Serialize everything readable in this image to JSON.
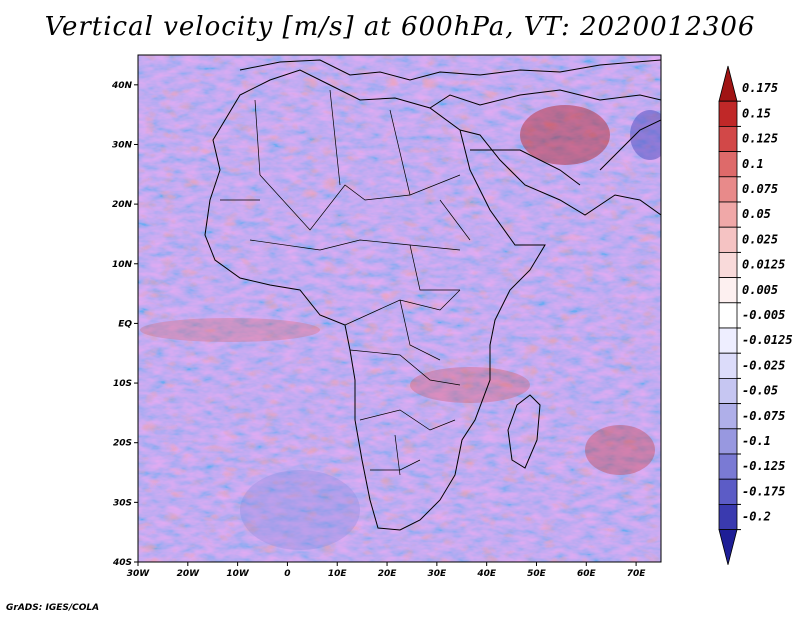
{
  "title": "Vertical velocity [m/s] at 600hPa, VT: 2020012306",
  "credit": "GrADS: IGES/COLA",
  "map": {
    "lon_range": [
      -30,
      75
    ],
    "lat_range": [
      -40,
      45
    ],
    "lon_ticks": [
      "30W",
      "20W",
      "10W",
      "0",
      "10E",
      "20E",
      "30E",
      "40E",
      "50E",
      "60E",
      "70E"
    ],
    "lat_ticks": [
      "40N",
      "30N",
      "20N",
      "10N",
      "EQ",
      "10S",
      "20S",
      "30S",
      "40S"
    ]
  },
  "colorbar": {
    "levels": [
      "0.175",
      "0.15",
      "0.125",
      "0.1",
      "0.075",
      "0.05",
      "0.025",
      "0.0125",
      "0.005",
      "-0.005",
      "-0.0125",
      "-0.025",
      "-0.05",
      "-0.075",
      "-0.1",
      "-0.125",
      "-0.175",
      "-0.2"
    ],
    "colors": [
      "#a01414",
      "#c02828",
      "#d24848",
      "#de6a6a",
      "#e88a8a",
      "#f0a8a8",
      "#f5c3c3",
      "#f9dada",
      "#fdf0f0",
      "#ffffff",
      "#eeeeff",
      "#dcdcfa",
      "#c6c6f2",
      "#afafe9",
      "#9898e0",
      "#7a7ad4",
      "#5c5cc6",
      "#3a3aaf",
      "#1e1e96"
    ]
  }
}
